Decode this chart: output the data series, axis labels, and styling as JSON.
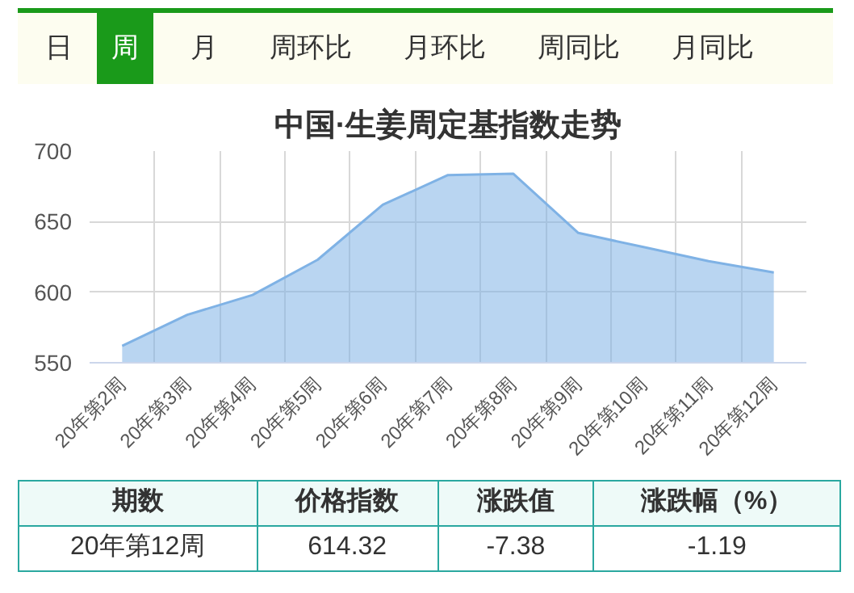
{
  "chart_data": {
    "type": "area",
    "title": "中国·生姜周定基指数走势",
    "categories": [
      "20年第2周",
      "20年第3周",
      "20年第4周",
      "20年第5周",
      "20年第6周",
      "20年第7周",
      "20年第8周",
      "20年第9周",
      "20年第10周",
      "20年第11周",
      "20年第12周"
    ],
    "series": [
      {
        "color": "#7fb2e5",
        "values": [
          562,
          584,
          598,
          623,
          662,
          683,
          684,
          642,
          632,
          622,
          614
        ]
      }
    ],
    "ylim": [
      550,
      700
    ],
    "yticks": [
      550,
      600,
      650,
      700
    ],
    "grid": true,
    "annotations": [
      "日",
      "周",
      "月",
      "周环比",
      "月环比",
      "周同比",
      "月同比",
      "期数",
      "价格指数",
      "涨跌值",
      "涨跌幅（%）",
      "20年第12周",
      "614.32",
      "-7.38",
      "-1.19"
    ]
  }
}
